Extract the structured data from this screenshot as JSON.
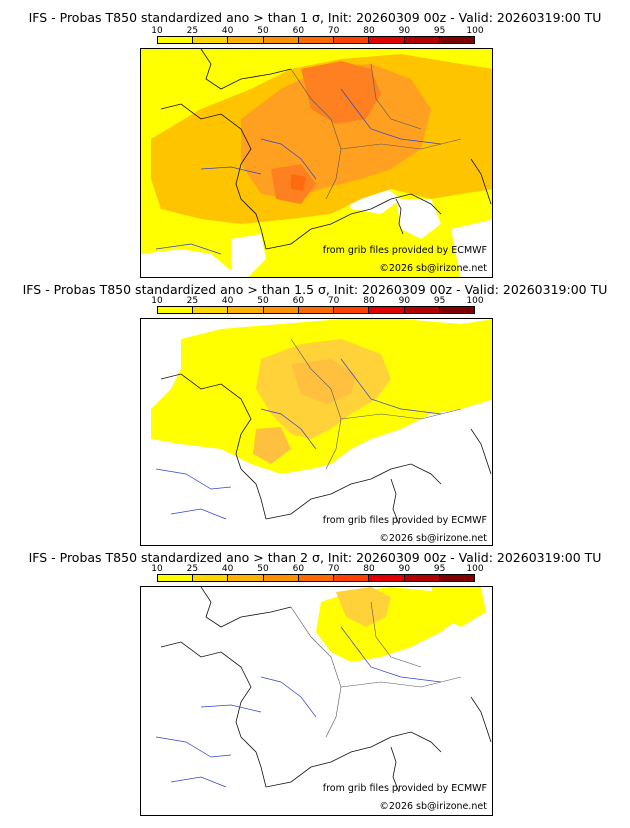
{
  "scale": {
    "ticks": [
      "10",
      "25",
      "40",
      "50",
      "60",
      "70",
      "80",
      "90",
      "95",
      "100"
    ],
    "colors": [
      "#ffff00",
      "#ffd700",
      "#ffb000",
      "#ff9000",
      "#ff6a00",
      "#ff4000",
      "#e00000",
      "#b00000",
      "#800000"
    ]
  },
  "panels": [
    {
      "title": "IFS - Probas T850  standardized ano > than 1 σ, Init: 20260309 00z - Valid: 20260319:00 TU",
      "credit_source": "from grib files provided by ECMWF",
      "credit_copyright": "©2026 sb@irizone.net"
    },
    {
      "title": "IFS - Probas T850  standardized ano > than 1.5 σ, Init: 20260309 00z - Valid: 20260319:00 TU",
      "credit_source": "from grib files provided by ECMWF",
      "credit_copyright": "©2026 sb@irizone.net"
    },
    {
      "title": "IFS - Probas T850  standardized ano > than 2 σ, Init: 20260309 00z - Valid: 20260319:00 TU",
      "credit_source": "from grib files provided by ECMWF",
      "credit_copyright": "©2026 sb@irizone.net"
    }
  ]
}
